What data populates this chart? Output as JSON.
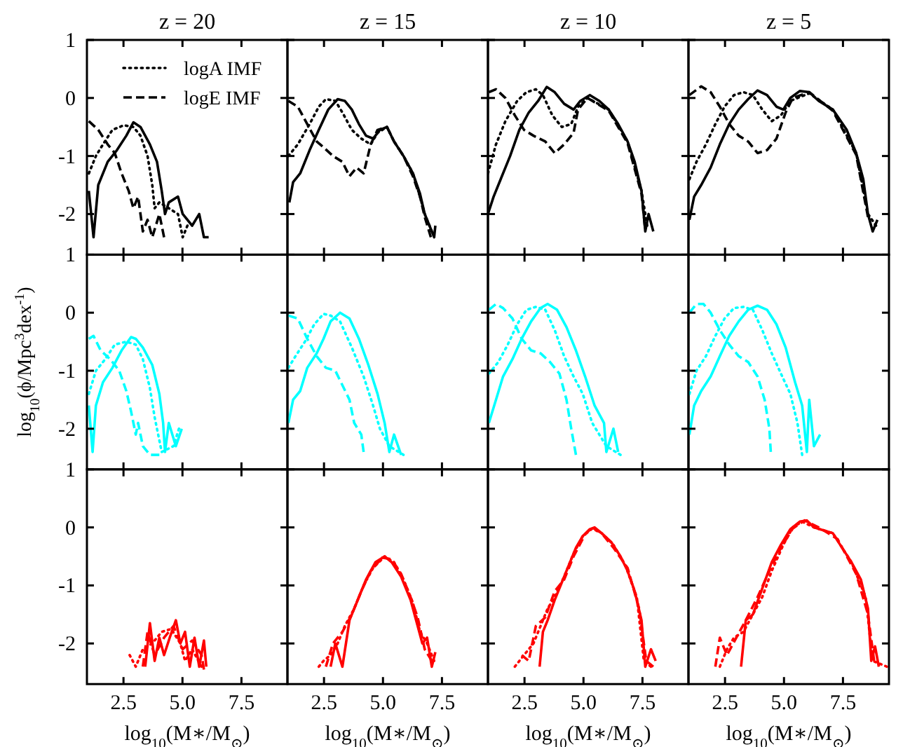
{
  "chart_data": [
    {
      "type": "line",
      "title": "z = 20",
      "legend": "top left",
      "tick_labels": "y",
      "xlim": [
        0.95,
        9.45
      ],
      "ylim": [
        -2.7,
        1
      ],
      "xticks": [
        {
          "value": 2.5,
          "label": null
        },
        {
          "value": 5,
          "label": null
        },
        {
          "value": 7.5,
          "label": null
        }
      ],
      "yticks": [
        -2,
        -1,
        0,
        1
      ],
      "series": [
        {
          "color": "#000000",
          "line_style": "solid",
          "x": [
            1.03,
            1.23,
            1.43,
            1.83,
            2.22,
            2.62,
            2.92,
            3.22,
            3.62,
            3.92,
            4.12,
            4.26,
            4.42,
            4.81,
            5.01,
            5.41,
            5.71,
            5.91,
            6.11
          ],
          "values": [
            -1.6,
            -2.4,
            -1.5,
            -1.1,
            -0.9,
            -0.65,
            -0.42,
            -0.5,
            -0.8,
            -1.1,
            -1.6,
            -2.0,
            -1.8,
            -1.7,
            -2.0,
            -2.2,
            -2.0,
            -2.4,
            -2.4
          ]
        },
        {
          "name": "logA IMF",
          "color": "#000000",
          "line_style": "dotted",
          "x": [
            1.03,
            1.33,
            1.63,
            2.03,
            2.52,
            2.92,
            3.22,
            3.52,
            3.72,
            3.82,
            4.02,
            4.42,
            4.81,
            5.01,
            5.21
          ],
          "values": [
            -1.3,
            -1.0,
            -0.8,
            -0.55,
            -0.47,
            -0.5,
            -0.65,
            -1.0,
            -1.5,
            -1.9,
            -1.8,
            -1.9,
            -2.0,
            -2.4,
            -2.2
          ]
        },
        {
          "name": "logE IMF",
          "color": "#000000",
          "line_style": "dashed",
          "x": [
            1.03,
            1.43,
            1.83,
            2.13,
            2.42,
            2.72,
            2.92,
            3.12,
            3.32,
            3.52,
            3.72,
            4.02,
            4.22
          ],
          "values": [
            -0.4,
            -0.55,
            -0.8,
            -0.95,
            -1.3,
            -1.6,
            -1.9,
            -1.7,
            -2.3,
            -2.1,
            -2.4,
            -2.0,
            -2.4
          ]
        }
      ]
    },
    {
      "type": "line",
      "title": "z = 15",
      "tick_labels": false,
      "xlim": [
        0.95,
        9.45
      ],
      "ylim": [
        -2.7,
        1
      ],
      "xticks": [
        {
          "value": 2.5,
          "label": null
        },
        {
          "value": 5,
          "label": null
        },
        {
          "value": 7.5,
          "label": null
        }
      ],
      "yticks": [
        {
          "value": -2,
          "label": null
        },
        {
          "value": -1,
          "label": null
        },
        {
          "value": 0,
          "label": null
        },
        {
          "value": 1,
          "label": null
        }
      ],
      "series": [
        {
          "color": "#000000",
          "line_style": "solid",
          "x": [
            1.03,
            1.19,
            1.49,
            1.89,
            2.28,
            2.68,
            3.08,
            3.38,
            3.68,
            3.98,
            4.28,
            4.58,
            4.87,
            5.17,
            5.47,
            5.87,
            6.27,
            6.57,
            6.77,
            6.97,
            7.17,
            7.22
          ],
          "values": [
            -1.8,
            -1.45,
            -1.3,
            -0.9,
            -0.55,
            -0.2,
            -0.02,
            -0.05,
            -0.2,
            -0.45,
            -0.65,
            -0.7,
            -0.55,
            -0.5,
            -0.75,
            -1.0,
            -1.3,
            -1.65,
            -2.0,
            -2.2,
            -2.4,
            -2.2
          ]
        },
        {
          "color": "#000000",
          "line_style": "dotted",
          "x": [
            0.99,
            1.39,
            1.89,
            2.28,
            2.58,
            2.98,
            3.28,
            3.68,
            4.08,
            4.48,
            4.77,
            5.17,
            5.47,
            5.87,
            6.27,
            6.57,
            6.77,
            7.07
          ],
          "values": [
            -1.0,
            -0.8,
            -0.45,
            -0.15,
            -0.02,
            -0.05,
            -0.25,
            -0.55,
            -0.7,
            -0.8,
            -0.6,
            -0.5,
            -0.75,
            -1.0,
            -1.3,
            -1.7,
            -2.0,
            -2.3
          ]
        },
        {
          "color": "#000000",
          "line_style": "dashed",
          "x": [
            0.99,
            1.39,
            1.79,
            2.19,
            2.48,
            2.88,
            3.28,
            3.58,
            3.88,
            4.18,
            4.48,
            4.77,
            5.17,
            5.47,
            5.87,
            6.27,
            6.57,
            6.77,
            7.03
          ],
          "values": [
            -0.05,
            -0.15,
            -0.45,
            -0.75,
            -0.85,
            -1.0,
            -1.1,
            -1.35,
            -1.2,
            -1.3,
            -0.8,
            -0.55,
            -0.5,
            -0.75,
            -1.0,
            -1.35,
            -1.7,
            -2.05,
            -2.4
          ]
        }
      ]
    },
    {
      "type": "line",
      "title": "z = 10",
      "tick_labels": false,
      "xlim": [
        0.95,
        9.45
      ],
      "ylim": [
        -2.7,
        1
      ],
      "xticks": [
        {
          "value": 2.5,
          "label": null
        },
        {
          "value": 5,
          "label": null
        },
        {
          "value": 7.5,
          "label": null
        }
      ],
      "yticks": [
        {
          "value": -2,
          "label": null
        },
        {
          "value": -1,
          "label": null
        },
        {
          "value": 0,
          "label": null
        },
        {
          "value": 1,
          "label": null
        }
      ],
      "series": [
        {
          "color": "#000000",
          "line_style": "solid",
          "x": [
            0.95,
            1.19,
            1.49,
            1.89,
            2.28,
            2.68,
            3.08,
            3.44,
            3.78,
            4.18,
            4.58,
            4.87,
            5.27,
            5.67,
            6.07,
            6.47,
            6.87,
            7.17,
            7.46,
            7.62,
            7.76,
            7.96
          ],
          "values": [
            -2.0,
            -1.7,
            -1.4,
            -1.0,
            -0.55,
            -0.25,
            -0.05,
            0.19,
            0.1,
            -0.1,
            -0.2,
            -0.05,
            0.05,
            -0.05,
            -0.2,
            -0.45,
            -0.75,
            -1.1,
            -1.6,
            -2.3,
            -2.0,
            -2.3
          ]
        },
        {
          "color": "#000000",
          "line_style": "dotted",
          "x": [
            0.95,
            1.29,
            1.69,
            2.19,
            2.58,
            2.98,
            3.28,
            3.68,
            4.08,
            4.48,
            4.77,
            5.17,
            6.07,
            6.87,
            7.46,
            7.7
          ],
          "values": [
            -1.3,
            -0.8,
            -0.4,
            -0.05,
            0.1,
            0.15,
            0.05,
            -0.3,
            -0.5,
            -0.45,
            -0.15,
            0.0,
            -0.2,
            -0.75,
            -1.6,
            -2.2
          ]
        },
        {
          "color": "#000000",
          "line_style": "dashed",
          "x": [
            0.99,
            1.29,
            1.69,
            2.09,
            2.48,
            2.88,
            3.38,
            3.78,
            4.18,
            4.58,
            4.77,
            5.17,
            6.07,
            6.87,
            7.46,
            7.6
          ],
          "values": [
            0.1,
            0.15,
            0.0,
            -0.3,
            -0.55,
            -0.65,
            -0.75,
            -0.95,
            -0.8,
            -0.6,
            -0.2,
            0.0,
            -0.22,
            -0.78,
            -1.65,
            -2.2
          ]
        }
      ]
    },
    {
      "type": "line",
      "title": "z = 5",
      "tick_labels": false,
      "xlim": [
        0.95,
        9.45
      ],
      "ylim": [
        -2.7,
        1
      ],
      "xticks": [
        {
          "value": 2.5,
          "label": null
        },
        {
          "value": 5,
          "label": null
        },
        {
          "value": 7.5,
          "label": null
        }
      ],
      "yticks": [
        {
          "value": -2,
          "label": null
        },
        {
          "value": -1,
          "label": null
        },
        {
          "value": 0,
          "label": null
        },
        {
          "value": 1,
          "label": null
        }
      ],
      "series": [
        {
          "color": "#000000",
          "line_style": "solid",
          "x": [
            0.99,
            1.19,
            1.49,
            1.89,
            2.28,
            2.68,
            3.08,
            3.48,
            3.88,
            4.28,
            4.68,
            4.97,
            5.27,
            5.67,
            6.07,
            6.47,
            7.07,
            7.66,
            8.06,
            8.36,
            8.56,
            8.76,
            8.96
          ],
          "values": [
            -2.1,
            -1.7,
            -1.5,
            -1.2,
            -0.8,
            -0.45,
            -0.2,
            -0.02,
            0.13,
            0.05,
            -0.15,
            -0.2,
            0.0,
            0.12,
            0.1,
            -0.05,
            -0.2,
            -0.55,
            -0.95,
            -1.4,
            -2.0,
            -2.3,
            -2.1
          ]
        },
        {
          "color": "#000000",
          "line_style": "dotted",
          "x": [
            0.99,
            1.29,
            1.69,
            2.09,
            2.48,
            2.88,
            3.28,
            3.68,
            4.08,
            4.48,
            4.87,
            5.27,
            6.07,
            7.07,
            8.06,
            8.56,
            8.9
          ],
          "values": [
            -1.4,
            -1.1,
            -0.8,
            -0.45,
            -0.15,
            0.05,
            0.1,
            0.05,
            -0.2,
            -0.4,
            -0.3,
            -0.05,
            0.08,
            -0.2,
            -0.95,
            -2.0,
            -2.2
          ]
        },
        {
          "color": "#000000",
          "line_style": "dashed",
          "x": [
            0.99,
            1.49,
            1.89,
            2.28,
            2.68,
            3.08,
            3.48,
            3.88,
            4.28,
            4.68,
            5.07,
            5.37,
            6.07,
            7.07,
            8.06,
            8.56
          ],
          "values": [
            0.05,
            0.2,
            0.1,
            -0.15,
            -0.45,
            -0.65,
            -0.75,
            -0.95,
            -0.9,
            -0.7,
            -0.25,
            0.0,
            0.1,
            -0.22,
            -0.98,
            -2.05
          ]
        }
      ]
    },
    {
      "type": "line",
      "ylabel": "log$_{10}$(ϕ/Mpc$^{3}$dex$^{-1}$)",
      "tick_labels": "y",
      "xlim": [
        0.95,
        9.45
      ],
      "ylim": [
        -2.7,
        1
      ],
      "xticks": [
        {
          "value": 2.5,
          "label": null
        },
        {
          "value": 5,
          "label": null
        },
        {
          "value": 7.5,
          "label": null
        }
      ],
      "yticks": [
        -2,
        -1,
        0,
        1
      ],
      "series": [
        {
          "color": "#00ffff",
          "line_style": "solid",
          "x": [
            1.03,
            1.19,
            1.33,
            1.63,
            2.03,
            2.42,
            2.82,
            3.02,
            3.32,
            3.72,
            4.02,
            4.18,
            4.26,
            4.42,
            4.72,
            4.97
          ],
          "values": [
            -1.6,
            -2.4,
            -1.6,
            -1.2,
            -0.95,
            -0.65,
            -0.42,
            -0.45,
            -0.6,
            -0.9,
            -1.4,
            -1.9,
            -2.4,
            -1.9,
            -2.3,
            -2.0
          ]
        },
        {
          "color": "#00ffff",
          "line_style": "dotted",
          "x": [
            1.03,
            1.33,
            1.73,
            2.13,
            2.62,
            3.02,
            3.32,
            3.62,
            3.82,
            4.12,
            4.62,
            4.85
          ],
          "values": [
            -1.4,
            -1.0,
            -0.8,
            -0.55,
            -0.5,
            -0.55,
            -0.8,
            -1.3,
            -1.8,
            -2.4,
            -2.3,
            -2.0
          ]
        },
        {
          "color": "#00ffff",
          "line_style": "dashed",
          "x": [
            1.03,
            1.23,
            1.53,
            1.93,
            2.32,
            2.62,
            2.82,
            3.02,
            3.12,
            3.32,
            3.62,
            4.02
          ],
          "values": [
            -0.45,
            -0.4,
            -0.65,
            -0.8,
            -1.0,
            -1.35,
            -1.7,
            -2.1,
            -1.9,
            -2.3,
            -2.45,
            -2.45
          ]
        }
      ]
    },
    {
      "type": "line",
      "tick_labels": false,
      "xlim": [
        0.95,
        9.45
      ],
      "ylim": [
        -2.7,
        1
      ],
      "xticks": [
        {
          "value": 2.5,
          "label": null
        },
        {
          "value": 5,
          "label": null
        },
        {
          "value": 7.5,
          "label": null
        }
      ],
      "yticks": [
        {
          "value": -2,
          "label": null
        },
        {
          "value": -1,
          "label": null
        },
        {
          "value": 0,
          "label": null
        },
        {
          "value": 1,
          "label": null
        }
      ],
      "series": [
        {
          "color": "#00ffff",
          "line_style": "solid",
          "x": [
            0.99,
            1.19,
            1.49,
            1.79,
            2.19,
            2.48,
            2.78,
            3.18,
            3.58,
            3.98,
            4.38,
            4.77,
            5.07,
            5.27,
            5.47,
            5.77
          ],
          "values": [
            -1.9,
            -1.5,
            -1.35,
            -0.95,
            -0.7,
            -0.45,
            -0.15,
            0.0,
            -0.1,
            -0.45,
            -0.9,
            -1.4,
            -1.9,
            -2.4,
            -2.1,
            -2.45
          ]
        },
        {
          "color": "#00ffff",
          "line_style": "dotted",
          "x": [
            0.99,
            1.29,
            1.69,
            2.09,
            2.48,
            2.78,
            3.18,
            3.68,
            4.18,
            4.58,
            4.87,
            5.27,
            5.87
          ],
          "values": [
            -0.95,
            -0.75,
            -0.5,
            -0.2,
            -0.02,
            -0.05,
            -0.15,
            -0.6,
            -1.1,
            -1.6,
            -2.0,
            -2.3,
            -2.45
          ]
        },
        {
          "color": "#00ffff",
          "line_style": "dashed",
          "x": [
            0.99,
            1.39,
            1.79,
            2.19,
            2.58,
            2.98,
            3.28,
            3.58,
            3.78,
            4.08,
            4.18
          ],
          "values": [
            -0.05,
            -0.1,
            -0.45,
            -0.75,
            -0.95,
            -1.0,
            -1.25,
            -1.5,
            -1.9,
            -2.1,
            -2.4
          ]
        }
      ]
    },
    {
      "type": "line",
      "tick_labels": false,
      "xlim": [
        0.95,
        9.45
      ],
      "ylim": [
        -2.7,
        1
      ],
      "xticks": [
        {
          "value": 2.5,
          "label": null
        },
        {
          "value": 5,
          "label": null
        },
        {
          "value": 7.5,
          "label": null
        }
      ],
      "yticks": [
        {
          "value": -2,
          "label": null
        },
        {
          "value": -1,
          "label": null
        },
        {
          "value": 0,
          "label": null
        },
        {
          "value": 1,
          "label": null
        }
      ],
      "series": [
        {
          "color": "#00ffff",
          "line_style": "solid",
          "x": [
            0.99,
            1.29,
            1.59,
            1.99,
            2.38,
            2.78,
            3.18,
            3.48,
            3.88,
            4.28,
            4.68,
            5.07,
            5.47,
            5.87,
            5.97,
            6.27,
            6.47
          ],
          "values": [
            -1.9,
            -1.5,
            -1.1,
            -0.8,
            -0.45,
            -0.15,
            0.08,
            0.15,
            0.05,
            -0.25,
            -0.65,
            -1.1,
            -1.6,
            -1.9,
            -2.4,
            -2.0,
            -2.4
          ]
        },
        {
          "color": "#00ffff",
          "line_style": "dotted",
          "x": [
            0.99,
            1.39,
            1.79,
            2.19,
            2.58,
            2.98,
            3.38,
            3.78,
            4.18,
            4.58,
            4.97,
            5.37,
            5.67,
            5.97,
            6.57
          ],
          "values": [
            -1.05,
            -0.85,
            -0.55,
            -0.2,
            0.05,
            0.1,
            0.05,
            -0.3,
            -0.75,
            -1.1,
            -1.4,
            -1.9,
            -2.1,
            -2.3,
            -2.45
          ]
        },
        {
          "color": "#00ffff",
          "line_style": "dashed",
          "x": [
            0.99,
            1.29,
            1.59,
            1.99,
            2.38,
            2.78,
            3.18,
            3.58,
            3.98,
            4.28,
            4.48,
            4.68
          ],
          "values": [
            0.05,
            0.15,
            0.08,
            -0.1,
            -0.45,
            -0.65,
            -0.7,
            -0.85,
            -1.05,
            -1.5,
            -2.0,
            -2.45
          ]
        }
      ]
    },
    {
      "type": "line",
      "tick_labels": false,
      "xlim": [
        0.95,
        9.45
      ],
      "ylim": [
        -2.7,
        1
      ],
      "xticks": [
        {
          "value": 2.5,
          "label": null
        },
        {
          "value": 5,
          "label": null
        },
        {
          "value": 7.5,
          "label": null
        }
      ],
      "yticks": [
        {
          "value": -2,
          "label": null
        },
        {
          "value": -1,
          "label": null
        },
        {
          "value": 0,
          "label": null
        },
        {
          "value": 1,
          "label": null
        }
      ],
      "series": [
        {
          "color": "#00ffff",
          "line_style": "solid",
          "x": [
            0.99,
            1.19,
            1.49,
            1.89,
            2.28,
            2.68,
            3.08,
            3.48,
            3.88,
            4.28,
            4.68,
            5.07,
            5.47,
            5.77,
            5.97,
            6.07,
            6.27,
            6.53
          ],
          "values": [
            -2.1,
            -1.6,
            -1.35,
            -1.1,
            -0.75,
            -0.4,
            -0.15,
            0.05,
            0.12,
            0.05,
            -0.2,
            -0.6,
            -1.2,
            -1.6,
            -2.4,
            -1.5,
            -2.3,
            -2.1
          ]
        },
        {
          "color": "#00ffff",
          "line_style": "dotted",
          "x": [
            0.99,
            1.29,
            1.69,
            2.09,
            2.48,
            2.88,
            3.28,
            3.68,
            4.08,
            4.48,
            4.87,
            5.27,
            5.57,
            5.77
          ],
          "values": [
            -1.4,
            -1.0,
            -0.75,
            -0.4,
            -0.1,
            0.08,
            0.1,
            0.05,
            -0.3,
            -0.7,
            -1.05,
            -1.4,
            -1.9,
            -2.45
          ]
        },
        {
          "color": "#00ffff",
          "line_style": "dashed",
          "x": [
            0.99,
            1.29,
            1.59,
            1.89,
            2.28,
            2.68,
            3.08,
            3.48,
            3.88,
            4.18,
            4.38,
            4.44
          ],
          "values": [
            0.0,
            0.15,
            0.15,
            0.0,
            -0.3,
            -0.55,
            -0.75,
            -0.85,
            -1.1,
            -1.5,
            -2.0,
            -2.4
          ]
        }
      ]
    },
    {
      "type": "line",
      "xlabel": "log$_{10}$(M∗/M$_{⊙}$)",
      "xlim": [
        0.95,
        9.45
      ],
      "ylim": [
        -2.7,
        1
      ],
      "xticks": [
        {
          "value": 2.5,
          "label": "2.5"
        },
        {
          "value": 5,
          "label": "5.0"
        },
        {
          "value": 7.5,
          "label": "7.5"
        }
      ],
      "yticks": [
        -2,
        -1,
        0,
        1
      ],
      "series": [
        {
          "color": "#ff0000",
          "line_style": "solid",
          "x": [
            3.42,
            3.62,
            3.82,
            4.02,
            4.22,
            4.46,
            4.72,
            4.91,
            5.11,
            5.31,
            5.51,
            5.71,
            5.91,
            6.01
          ],
          "values": [
            -2.4,
            -1.65,
            -2.3,
            -1.9,
            -2.2,
            -1.9,
            -1.6,
            -2.0,
            -1.8,
            -2.4,
            -1.9,
            -2.4,
            -1.95,
            -2.4
          ]
        },
        {
          "color": "#ff0000",
          "line_style": "dotted",
          "x": [
            2.76,
            3.02,
            3.32,
            3.72,
            4.12,
            4.52,
            4.91,
            5.11,
            5.41,
            5.81
          ],
          "values": [
            -2.2,
            -2.4,
            -2.1,
            -2.0,
            -1.8,
            -1.75,
            -2.0,
            -2.3,
            -2.1,
            -2.4
          ]
        },
        {
          "color": "#ff0000",
          "line_style": "dashed",
          "x": [
            3.32,
            3.52,
            3.82,
            4.22,
            4.62,
            5.01,
            5.41,
            5.81,
            5.91
          ],
          "values": [
            -2.4,
            -1.8,
            -2.2,
            -1.9,
            -1.7,
            -2.1,
            -1.95,
            -2.2,
            -2.45
          ]
        }
      ]
    },
    {
      "type": "line",
      "xlabel": "log$_{10}$(M∗/M$_{⊙}$)",
      "tick_labels": "x",
      "xlim": [
        0.95,
        9.45
      ],
      "ylim": [
        -2.7,
        1
      ],
      "xticks": [
        {
          "value": 2.5,
          "label": "2.5"
        },
        {
          "value": 5,
          "label": "5.0"
        },
        {
          "value": 7.5,
          "label": "7.5"
        }
      ],
      "yticks": [
        {
          "value": -2,
          "label": null
        },
        {
          "value": -1,
          "label": null
        },
        {
          "value": 0,
          "label": null
        },
        {
          "value": 1,
          "label": null
        }
      ],
      "series": [
        {
          "color": "#ff0000",
          "line_style": "solid",
          "x": [
            2.78,
            2.98,
            3.28,
            3.58,
            3.98,
            4.28,
            4.68,
            5.07,
            5.37,
            5.77,
            6.17,
            6.47,
            6.67,
            6.87,
            7.07,
            7.22
          ],
          "values": [
            -2.4,
            -2.0,
            -2.4,
            -1.6,
            -1.2,
            -0.9,
            -0.6,
            -0.5,
            -0.6,
            -0.85,
            -1.25,
            -1.7,
            -2.0,
            -1.9,
            -2.4,
            -2.15
          ]
        },
        {
          "color": "#ff0000",
          "line_style": "dotted",
          "x": [
            2.28,
            2.48,
            2.78,
            3.08,
            3.38,
            3.78,
            4.18,
            4.58,
            5.07,
            5.47,
            5.87,
            6.27,
            6.57,
            6.87,
            7.17
          ],
          "values": [
            -2.4,
            -2.3,
            -2.2,
            -2.0,
            -1.7,
            -1.4,
            -1.0,
            -0.7,
            -0.5,
            -0.6,
            -0.9,
            -1.3,
            -1.8,
            -2.0,
            -2.3
          ]
        },
        {
          "color": "#ff0000",
          "line_style": "dashed",
          "x": [
            2.58,
            2.88,
            3.28,
            3.68,
            4.08,
            4.48,
            4.97,
            5.37,
            5.77,
            6.17,
            6.47,
            6.77,
            7.07
          ],
          "values": [
            -2.4,
            -2.0,
            -1.8,
            -1.5,
            -1.1,
            -0.75,
            -0.52,
            -0.55,
            -0.8,
            -1.2,
            -1.55,
            -2.1,
            -2.3
          ]
        }
      ]
    },
    {
      "type": "line",
      "xlabel": "log$_{10}$(M∗/M$_{⊙}$)",
      "tick_labels": "x",
      "xlim": [
        0.95,
        9.45
      ],
      "ylim": [
        -2.7,
        1
      ],
      "xticks": [
        {
          "value": 2.5,
          "label": "2.5"
        },
        {
          "value": 5,
          "label": "5.0"
        },
        {
          "value": 7.5,
          "label": "7.5"
        }
      ],
      "yticks": [
        {
          "value": -2,
          "label": null
        },
        {
          "value": -1,
          "label": null
        },
        {
          "value": 0,
          "label": null
        },
        {
          "value": 1,
          "label": null
        }
      ],
      "series": [
        {
          "color": "#ff0000",
          "line_style": "solid",
          "x": [
            3.14,
            3.28,
            3.48,
            3.78,
            4.08,
            4.38,
            4.68,
            4.97,
            5.27,
            5.47,
            5.77,
            6.17,
            6.57,
            6.87,
            7.17,
            7.46,
            7.62,
            7.86,
            8.06
          ],
          "values": [
            -2.4,
            -1.8,
            -1.6,
            -1.25,
            -0.95,
            -0.65,
            -0.35,
            -0.15,
            -0.03,
            0.0,
            -0.1,
            -0.25,
            -0.5,
            -0.75,
            -1.1,
            -1.6,
            -2.4,
            -2.1,
            -2.3
          ]
        },
        {
          "color": "#ff0000",
          "line_style": "dotted",
          "x": [
            2.09,
            2.48,
            2.88,
            3.18,
            3.48,
            3.78,
            4.18,
            4.58,
            4.97,
            5.37,
            5.77,
            6.27,
            6.77,
            7.26,
            7.56,
            7.86
          ],
          "values": [
            -2.4,
            -2.2,
            -2.0,
            -1.7,
            -1.4,
            -1.2,
            -0.85,
            -0.45,
            -0.15,
            -0.02,
            -0.1,
            -0.3,
            -0.65,
            -1.2,
            -2.3,
            -2.4
          ]
        },
        {
          "color": "#ff0000",
          "line_style": "dashed",
          "x": [
            2.38,
            2.68,
            2.98,
            3.38,
            3.78,
            4.18,
            4.58,
            5.07,
            5.37,
            5.77,
            6.27,
            6.87,
            7.36,
            7.66,
            7.96
          ],
          "values": [
            -2.2,
            -2.3,
            -1.7,
            -1.55,
            -1.1,
            -0.9,
            -0.5,
            -0.12,
            0.0,
            -0.1,
            -0.35,
            -0.7,
            -1.4,
            -2.3,
            -2.4
          ]
        }
      ]
    },
    {
      "type": "line",
      "xlabel": "log$_{10}$(M∗/M$_{⊙}$)",
      "tick_labels": "x",
      "xlim": [
        0.95,
        9.45
      ],
      "ylim": [
        -2.7,
        1
      ],
      "xticks": [
        {
          "value": 2.5,
          "label": "2.5"
        },
        {
          "value": 5,
          "label": "5.0"
        },
        {
          "value": 7.5,
          "label": "7.5"
        }
      ],
      "yticks": [
        {
          "value": -2,
          "label": null
        },
        {
          "value": -1,
          "label": null
        },
        {
          "value": 0,
          "label": null
        },
        {
          "value": 1,
          "label": null
        }
      ],
      "series": [
        {
          "color": "#ff0000",
          "line_style": "solid",
          "x": [
            3.18,
            3.38,
            3.68,
            4.08,
            4.48,
            4.87,
            5.27,
            5.67,
            5.97,
            6.27,
            6.67,
            7.07,
            7.46,
            7.86,
            8.26,
            8.56,
            8.7,
            8.86,
            9.02
          ],
          "values": [
            -2.4,
            -1.6,
            -1.5,
            -1.05,
            -0.6,
            -0.3,
            -0.03,
            0.1,
            0.12,
            0.0,
            -0.05,
            -0.1,
            -0.35,
            -0.6,
            -0.9,
            -1.4,
            -2.3,
            -2.05,
            -2.4
          ]
        },
        {
          "color": "#ff0000",
          "line_style": "dotted",
          "x": [
            2.28,
            2.58,
            2.88,
            3.28,
            3.68,
            4.08,
            4.48,
            4.97,
            5.37,
            5.77,
            6.27,
            7.07,
            7.86,
            8.46,
            8.76,
            9.36
          ],
          "values": [
            -2.4,
            -2.1,
            -1.9,
            -1.8,
            -1.5,
            -1.2,
            -0.75,
            -0.3,
            0.0,
            0.1,
            0.0,
            -0.1,
            -0.6,
            -1.2,
            -2.3,
            -2.4
          ]
        },
        {
          "color": "#ff0000",
          "line_style": "dashed",
          "x": [
            2.09,
            2.28,
            2.58,
            2.98,
            3.38,
            3.88,
            4.38,
            4.87,
            5.37,
            5.87,
            6.47,
            7.27,
            8.06,
            8.56,
            8.82
          ],
          "values": [
            -2.4,
            -1.9,
            -2.2,
            -1.9,
            -1.6,
            -1.2,
            -0.75,
            -0.35,
            -0.02,
            0.12,
            0.0,
            -0.2,
            -0.8,
            -1.5,
            -2.3
          ]
        }
      ]
    }
  ]
}
